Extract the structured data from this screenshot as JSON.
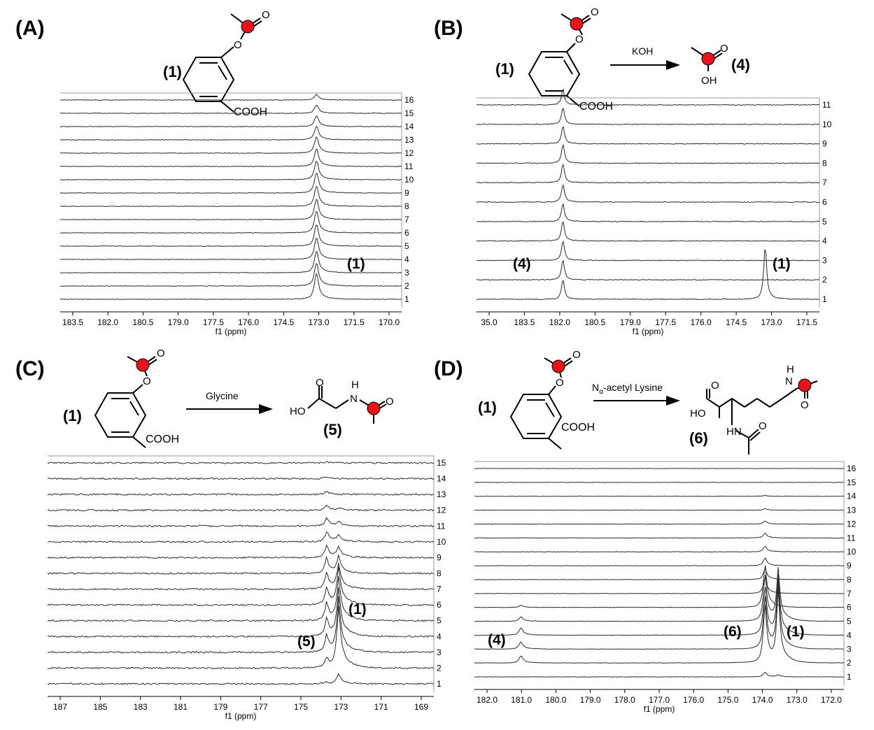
{
  "colors": {
    "trace": "#2a2a2a",
    "frame": "#9a9a9a",
    "atom": "#e8141b"
  },
  "chart_data": [
    {
      "panel": "(A)",
      "type": "line",
      "xlabel": "f1 (ppm)",
      "xlim": [
        169.6,
        184.4
      ],
      "xticks": [
        "183.5",
        "182.0",
        "180.5",
        "179.0",
        "177.5",
        "176.0",
        "174.5",
        "173.0",
        "171.5",
        "170.0"
      ],
      "series_labels": [
        "1",
        "2",
        "3",
        "4",
        "5",
        "6",
        "7",
        "8",
        "9",
        "10",
        "11",
        "12",
        "13",
        "14",
        "15",
        "16"
      ],
      "peaks": [
        {
          "species": "(1)",
          "ppm": 173.3,
          "heights": [
            1.9,
            1.7,
            1.6,
            1.6,
            1.6,
            1.6,
            1.5,
            1.5,
            1.5,
            1.4,
            1.3,
            1.2,
            1.0,
            0.8,
            0.6,
            0.4
          ]
        }
      ],
      "annotations": [
        "(1)"
      ],
      "scheme": {
        "reactant_label": "(1)",
        "cooh": "COOH",
        "reagent": "",
        "product_label": "",
        "product_text": []
      }
    },
    {
      "panel": "(B)",
      "type": "line",
      "xlabel": "f1 (ppm)",
      "xlim": [
        171.1,
        185.0
      ],
      "xticks": [
        "35.0",
        "183.5",
        "182.0",
        "180.5",
        "179.0",
        "177.5",
        "176.0",
        "174.5",
        "173.0",
        "171.5"
      ],
      "series_labels": [
        "1",
        "2",
        "3",
        "4",
        "5",
        "6",
        "7",
        "8",
        "9",
        "10",
        "11"
      ],
      "peaks": [
        {
          "species": "(4)",
          "ppm": 181.5,
          "heights": [
            1.0,
            1.0,
            1.0,
            1.0,
            0.9,
            0.9,
            0.95,
            0.95,
            0.9,
            0.85,
            0.8
          ]
        },
        {
          "species": "(1)",
          "ppm": 173.3,
          "heights": [
            2.7,
            0,
            0,
            0,
            0,
            0,
            0,
            0,
            0,
            0,
            0
          ]
        }
      ],
      "annotations": [
        "(4)",
        "(1)"
      ],
      "scheme": {
        "reactant_label": "(1)",
        "cooh": "COOH",
        "reagent": "KOH",
        "product_label": "(4)",
        "product_text": [
          "O",
          "OH"
        ]
      }
    },
    {
      "panel": "(C)",
      "type": "line",
      "xlabel": "f1 (ppm)",
      "xlim": [
        168.7,
        188.1
      ],
      "xticks": [
        "187",
        "185",
        "183",
        "181",
        "179",
        "177",
        "175",
        "173",
        "171",
        "169"
      ],
      "series_labels": [
        "1",
        "2",
        "3",
        "4",
        "5",
        "6",
        "7",
        "8",
        "9",
        "10",
        "11",
        "12",
        "13",
        "14",
        "15"
      ],
      "peaks": [
        {
          "species": "(5)",
          "ppm": 174.1,
          "heights": [
            0.1,
            0.45,
            0.8,
            0.85,
            0.85,
            0.8,
            0.8,
            0.75,
            0.6,
            0.5,
            0.4,
            0.25,
            0.15,
            0.1,
            0.05
          ]
        },
        {
          "species": "(1)",
          "ppm": 173.5,
          "heights": [
            0.5,
            3.0,
            2.6,
            2.3,
            2.1,
            1.8,
            1.2,
            0.8,
            0.5,
            0.3,
            0.2,
            0.1,
            0,
            0,
            0
          ]
        }
      ],
      "annotations": [
        "(1)",
        "(5)"
      ],
      "scheme": {
        "reactant_label": "(1)",
        "cooh": "COOH",
        "reagent": "Glycine",
        "product_label": "(5)",
        "product_text": [
          "O",
          "HO",
          "H",
          "N",
          "O"
        ]
      }
    },
    {
      "panel": "(D)",
      "type": "line",
      "xlabel": "f1 (ppm)",
      "xlim": [
        171.6,
        182.8
      ],
      "xticks": [
        "182.0",
        "181.0",
        "180.0",
        "179.0",
        "178.0",
        "177.0",
        "176.0",
        "175.0",
        "174.0",
        "173.0",
        "172.0"
      ],
      "series_labels": [
        "1",
        "2",
        "3",
        "4",
        "5",
        "6",
        "7",
        "8",
        "9",
        "10",
        "11",
        "12",
        "13",
        "14",
        "15",
        "16"
      ],
      "peaks": [
        {
          "species": "(6)",
          "ppm": 174.0,
          "heights": [
            0.3,
            3.6,
            3.3,
            3.0,
            2.9,
            2.7,
            1.0,
            0.7,
            0.5,
            0.35,
            0.3,
            0.2,
            0.1,
            0.05,
            0,
            0
          ]
        },
        {
          "species": "(1)",
          "ppm": 173.6,
          "heights": [
            0.1,
            4.2,
            3.8,
            3.4,
            3.0,
            0,
            0,
            0,
            0,
            0,
            0,
            0,
            0,
            0,
            0,
            0
          ]
        },
        {
          "species": "(4)",
          "ppm": 181.4,
          "heights": [
            0,
            0.5,
            0.5,
            0.5,
            0.3,
            0.15,
            0,
            0,
            0,
            0,
            0,
            0,
            0,
            0,
            0,
            0
          ]
        }
      ],
      "annotations": [
        "(4)",
        "(6)",
        "(1)"
      ],
      "scheme": {
        "reactant_label": "(1)",
        "cooh": "COOH",
        "reagent_main": "N",
        "reagent_sub": "α",
        "reagent_rest": "-acetyl Lysine",
        "product_label": "(6)",
        "product_text": [
          "H",
          "N",
          "O",
          "O",
          "HO",
          "HN",
          "O"
        ]
      }
    }
  ]
}
